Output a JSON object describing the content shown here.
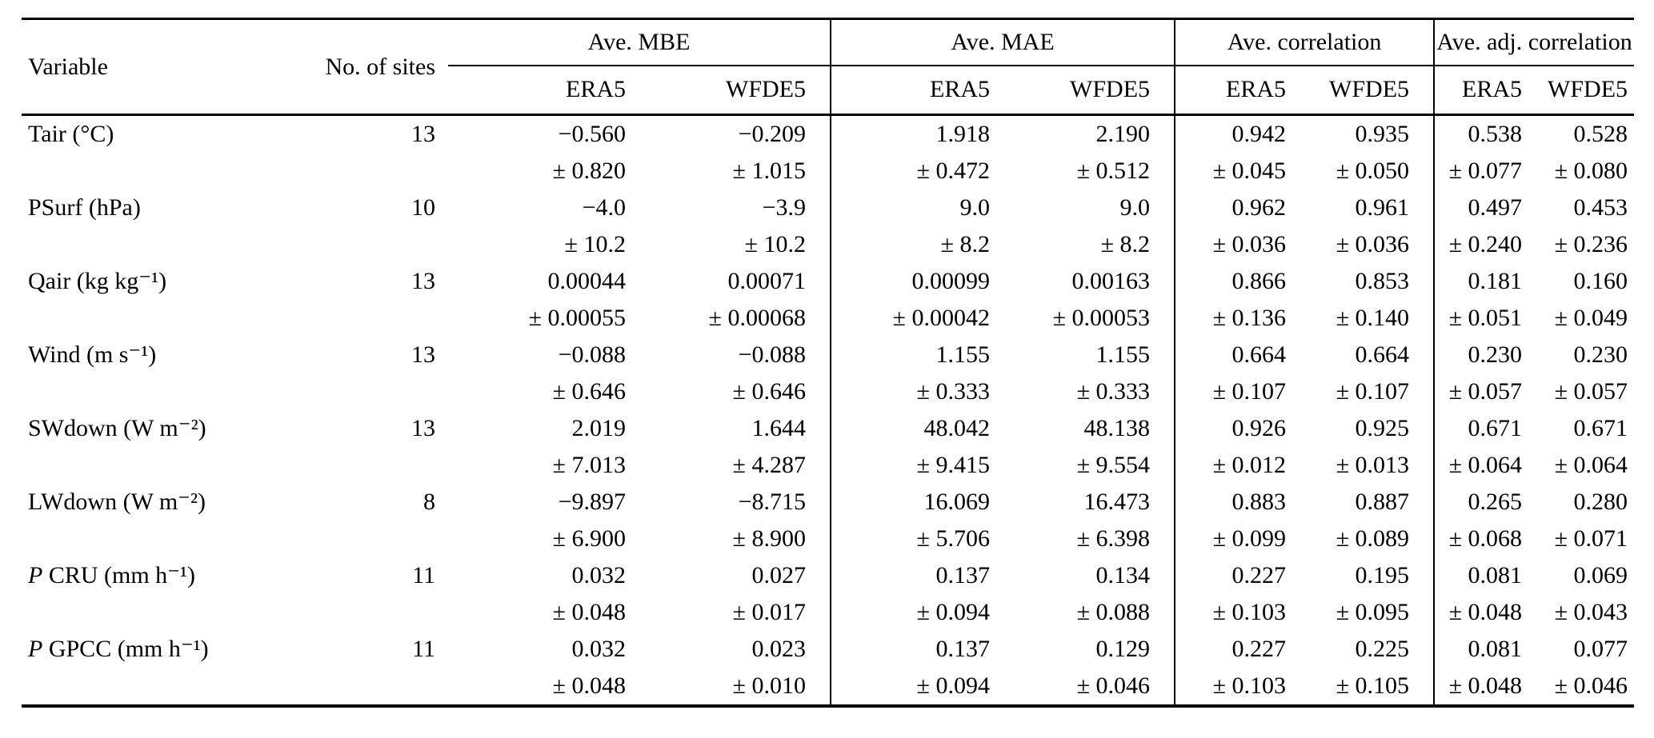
{
  "colors": {
    "background": "#ffffff",
    "text": "#000000",
    "rule": "#000000"
  },
  "table": {
    "columns": {
      "variable": "Variable",
      "sites": "No. of sites",
      "groups": [
        {
          "label": "Ave. MBE"
        },
        {
          "label": "Ave. MAE"
        },
        {
          "label": "Ave. correlation"
        },
        {
          "label": "Ave. adj. correlation"
        }
      ],
      "sub": [
        "ERA5",
        "WFDE5"
      ]
    },
    "rows": [
      {
        "variable": "Tair (°C)",
        "italic_first": false,
        "sites": "13",
        "values": [
          "−0.560",
          "−0.209",
          "1.918",
          "2.190",
          "0.942",
          "0.935",
          "0.538",
          "0.528"
        ],
        "errors": [
          "± 0.820",
          "± 1.015",
          "± 0.472",
          "± 0.512",
          "± 0.045",
          "± 0.050",
          "± 0.077",
          "± 0.080"
        ]
      },
      {
        "variable": "PSurf (hPa)",
        "italic_first": false,
        "sites": "10",
        "values": [
          "−4.0",
          "−3.9",
          "9.0",
          "9.0",
          "0.962",
          "0.961",
          "0.497",
          "0.453"
        ],
        "errors": [
          "± 10.2",
          "± 10.2",
          "± 8.2",
          "± 8.2",
          "± 0.036",
          "± 0.036",
          "± 0.240",
          "± 0.236"
        ]
      },
      {
        "variable": "Qair (kg kg⁻¹)",
        "italic_first": false,
        "sites": "13",
        "values": [
          "0.00044",
          "0.00071",
          "0.00099",
          "0.00163",
          "0.866",
          "0.853",
          "0.181",
          "0.160"
        ],
        "errors": [
          "± 0.00055",
          "± 0.00068",
          "± 0.00042",
          "± 0.00053",
          "± 0.136",
          "± 0.140",
          "± 0.051",
          "± 0.049"
        ]
      },
      {
        "variable": "Wind (m s⁻¹)",
        "italic_first": false,
        "sites": "13",
        "values": [
          "−0.088",
          "−0.088",
          "1.155",
          "1.155",
          "0.664",
          "0.664",
          "0.230",
          "0.230"
        ],
        "errors": [
          "± 0.646",
          "± 0.646",
          "± 0.333",
          "± 0.333",
          "± 0.107",
          "± 0.107",
          "± 0.057",
          "± 0.057"
        ]
      },
      {
        "variable": "SWdown (W m⁻²)",
        "italic_first": false,
        "sites": "13",
        "values": [
          "2.019",
          "1.644",
          "48.042",
          "48.138",
          "0.926",
          "0.925",
          "0.671",
          "0.671"
        ],
        "errors": [
          "± 7.013",
          "± 4.287",
          "± 9.415",
          "± 9.554",
          "± 0.012",
          "± 0.013",
          "± 0.064",
          "± 0.064"
        ]
      },
      {
        "variable": "LWdown (W m⁻²)",
        "italic_first": false,
        "sites": "8",
        "values": [
          "−9.897",
          "−8.715",
          "16.069",
          "16.473",
          "0.883",
          "0.887",
          "0.265",
          "0.280"
        ],
        "errors": [
          "± 6.900",
          "± 8.900",
          "± 5.706",
          "± 6.398",
          "± 0.099",
          "± 0.089",
          "± 0.068",
          "± 0.071"
        ]
      },
      {
        "variable": "P CRU (mm h⁻¹)",
        "italic_first": true,
        "sites": "11",
        "values": [
          "0.032",
          "0.027",
          "0.137",
          "0.134",
          "0.227",
          "0.195",
          "0.081",
          "0.069"
        ],
        "errors": [
          "± 0.048",
          "± 0.017",
          "± 0.094",
          "± 0.088",
          "± 0.103",
          "± 0.095",
          "± 0.048",
          "± 0.043"
        ]
      },
      {
        "variable": "P GPCC (mm h⁻¹)",
        "italic_first": true,
        "sites": "11",
        "values": [
          "0.032",
          "0.023",
          "0.137",
          "0.129",
          "0.227",
          "0.225",
          "0.081",
          "0.077"
        ],
        "errors": [
          "± 0.048",
          "± 0.010",
          "± 0.094",
          "± 0.046",
          "± 0.103",
          "± 0.105",
          "± 0.048",
          "± 0.046"
        ]
      }
    ]
  }
}
